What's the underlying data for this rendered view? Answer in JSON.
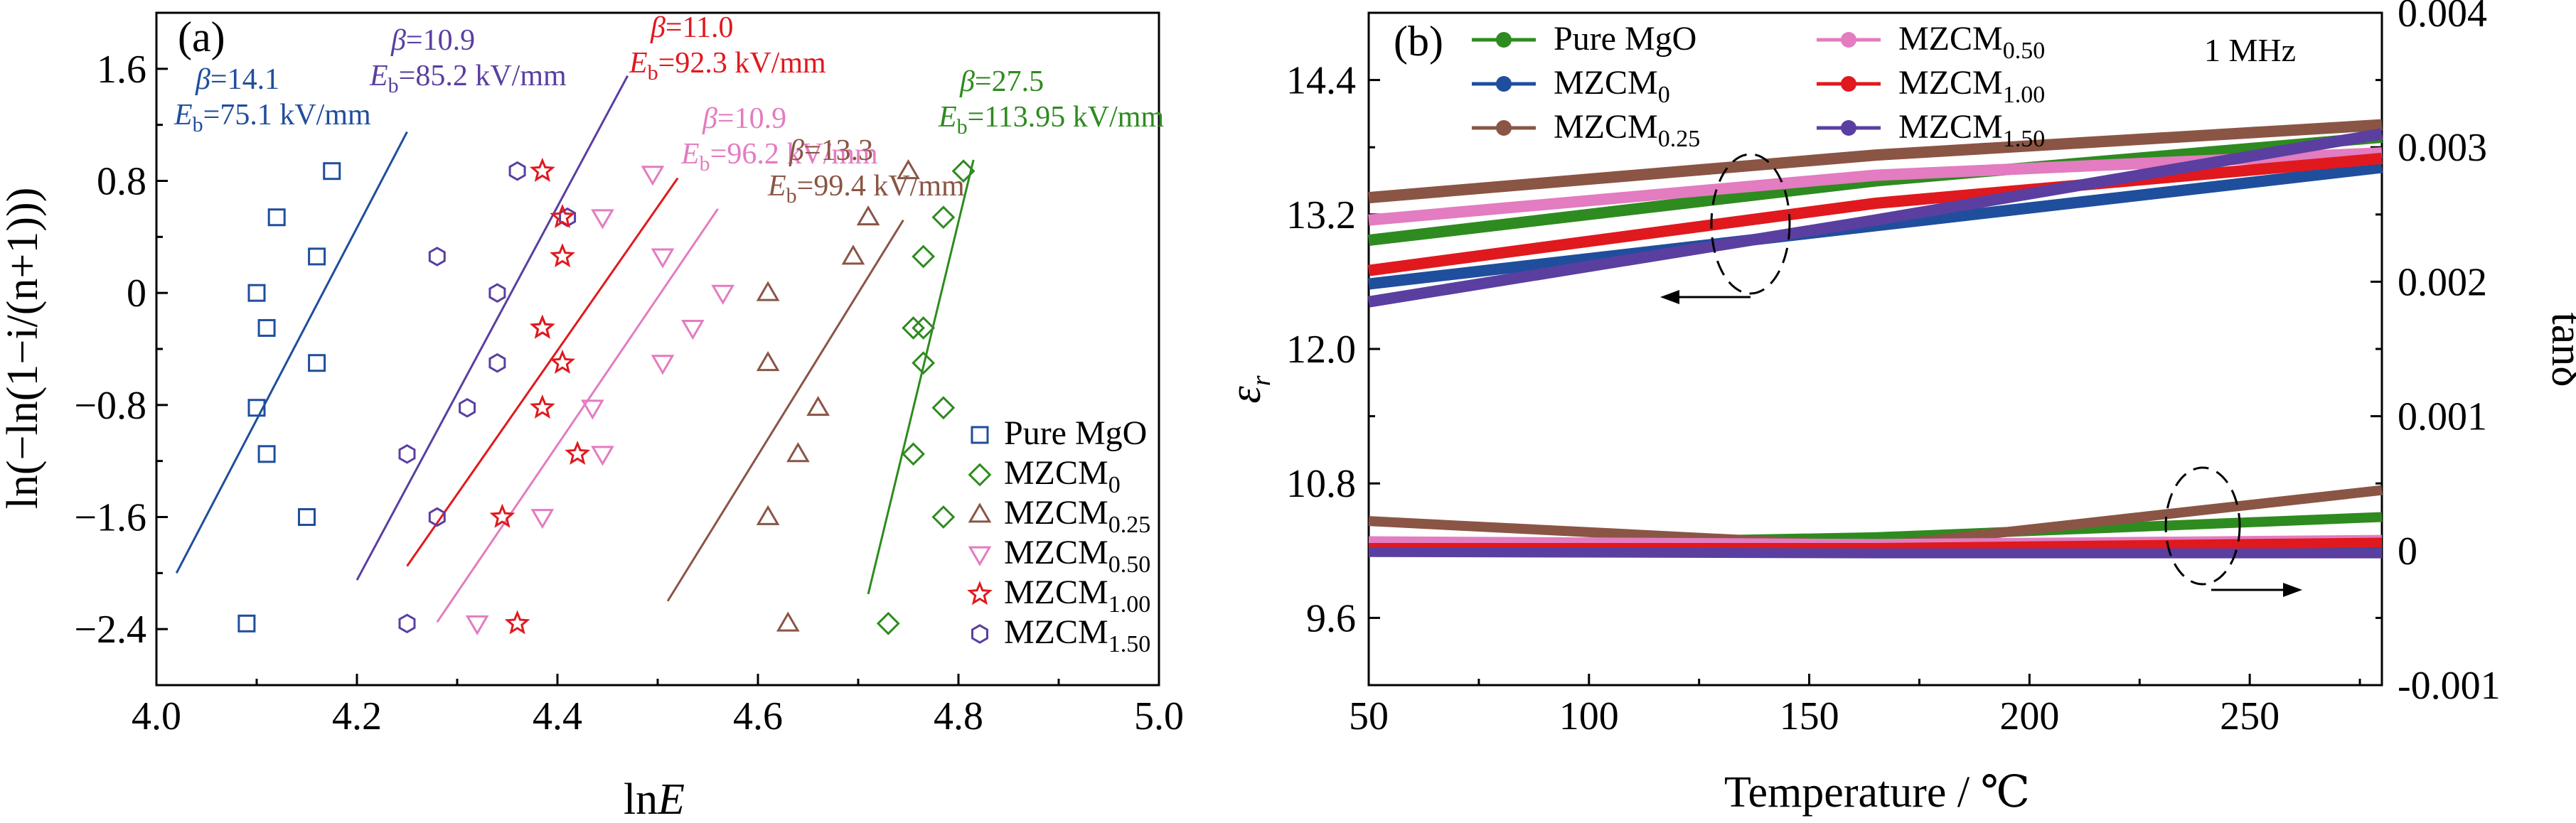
{
  "panels": {
    "a": {
      "label": "(a)",
      "xlabel_prefix": "ln",
      "xlabel_var": "E",
      "ylabel": "ln(−ln(1−i/(n+1)))",
      "x_ticks": [
        "4.0",
        "4.2",
        "4.4",
        "4.6",
        "4.8",
        "5.0"
      ],
      "y_ticks": [
        "1.6",
        "0.8",
        "0",
        "−0.8",
        "−1.6",
        "−2.4"
      ]
    },
    "b": {
      "label": "(b)",
      "xlabel": "Temperature / ℃",
      "ylabel_left": "εr",
      "ylabel_right": "tanδ",
      "frequency_note": "1 MHz",
      "x_ticks": [
        "50",
        "100",
        "150",
        "200",
        "250"
      ],
      "y_ticks_left": [
        "14.4",
        "13.2",
        "12.0",
        "10.8",
        "9.6"
      ],
      "y_ticks_right": [
        "0.004",
        "0.003",
        "0.002",
        "0.001",
        "0",
        "-0.001"
      ]
    }
  },
  "chart_data": [
    {
      "type": "scatter",
      "panel": "a",
      "xlabel": "lnE",
      "ylabel": "ln(−ln(1−i/(n+1)))",
      "xlim": [
        4.0,
        5.0
      ],
      "ylim": [
        -2.8,
        2.0
      ],
      "grid": false,
      "legend_position": "bottom-right",
      "series": [
        {
          "name": "Pure MgO",
          "sub": "",
          "color": "#1f4e9c",
          "marker": "square",
          "beta": "14.1",
          "Eb": "75.1 kV/mm",
          "fit": [
            [
              4.02,
              -2.0
            ],
            [
              4.25,
              1.15
            ]
          ],
          "points": [
            [
              4.09,
              -2.36
            ],
            [
              4.15,
              -1.6
            ],
            [
              4.11,
              -1.15
            ],
            [
              4.1,
              -0.82
            ],
            [
              4.16,
              -0.5
            ],
            [
              4.11,
              -0.25
            ],
            [
              4.1,
              0.0
            ],
            [
              4.16,
              0.26
            ],
            [
              4.12,
              0.54
            ],
            [
              4.175,
              0.87
            ]
          ]
        },
        {
          "name": "MZCM",
          "sub": "1.50",
          "color": "#5a3fa0",
          "marker": "hexagon",
          "beta": "10.9",
          "Eb": "85.2 kV/mm",
          "fit": [
            [
              4.2,
              -2.05
            ],
            [
              4.47,
              1.55
            ]
          ],
          "points": [
            [
              4.25,
              -2.36
            ],
            [
              4.28,
              -1.6
            ],
            [
              4.25,
              -1.15
            ],
            [
              4.31,
              -0.82
            ],
            [
              4.34,
              -0.5
            ],
            [
              4.34,
              0.0
            ],
            [
              4.28,
              0.26
            ],
            [
              4.41,
              0.54
            ],
            [
              4.36,
              0.87
            ]
          ]
        },
        {
          "name": "MZCM",
          "sub": "1.00",
          "color": "#e0191e",
          "marker": "star",
          "beta": "11.0",
          "Eb": "92.3 kV/mm",
          "fit": [
            [
              4.25,
              -1.95
            ],
            [
              4.52,
              0.82
            ]
          ],
          "points": [
            [
              4.36,
              -2.36
            ],
            [
              4.345,
              -1.6
            ],
            [
              4.42,
              -1.15
            ],
            [
              4.385,
              -0.82
            ],
            [
              4.405,
              -0.5
            ],
            [
              4.385,
              -0.25
            ],
            [
              4.385,
              -0.25
            ],
            [
              4.405,
              0.26
            ],
            [
              4.405,
              0.54
            ],
            [
              4.385,
              0.87
            ]
          ]
        },
        {
          "name": "MZCM",
          "sub": "0.50",
          "color": "#e37cc0",
          "marker": "triangle-down",
          "beta": "10.9",
          "Eb": "96.2 kV/mm",
          "fit": [
            [
              4.28,
              -2.35
            ],
            [
              4.56,
              0.6
            ]
          ],
          "points": [
            [
              4.32,
              -2.36
            ],
            [
              4.385,
              -1.6
            ],
            [
              4.445,
              -1.15
            ],
            [
              4.435,
              -0.82
            ],
            [
              4.505,
              -0.5
            ],
            [
              4.535,
              -0.25
            ],
            [
              4.565,
              0.0
            ],
            [
              4.505,
              0.26
            ],
            [
              4.445,
              0.54
            ],
            [
              4.495,
              0.85
            ]
          ]
        },
        {
          "name": "MZCM",
          "sub": "0.25",
          "color": "#8a5545",
          "marker": "triangle-up",
          "beta": "13.3",
          "Eb": "99.4 kV/mm",
          "fit": [
            [
              4.51,
              -2.2
            ],
            [
              4.745,
              0.52
            ]
          ],
          "points": [
            [
              4.63,
              -2.36
            ],
            [
              4.61,
              -1.6
            ],
            [
              4.64,
              -1.15
            ],
            [
              4.66,
              -0.82
            ],
            [
              4.61,
              -0.5
            ],
            [
              4.61,
              0.0
            ],
            [
              4.695,
              0.26
            ],
            [
              4.71,
              0.54
            ],
            [
              4.75,
              0.87
            ]
          ]
        },
        {
          "name": "MZCM",
          "sub": "0",
          "color": "#2e8b1f",
          "marker": "diamond",
          "beta": "27.5",
          "Eb": "113.95 kV/mm",
          "fit": [
            [
              4.71,
              -2.15
            ],
            [
              4.815,
              0.95
            ]
          ],
          "points": [
            [
              4.73,
              -2.36
            ],
            [
              4.785,
              -1.6
            ],
            [
              4.755,
              -1.15
            ],
            [
              4.785,
              -0.82
            ],
            [
              4.765,
              -0.5
            ],
            [
              4.765,
              -0.25
            ],
            [
              4.755,
              -0.25
            ],
            [
              4.765,
              0.26
            ],
            [
              4.785,
              0.54
            ],
            [
              4.805,
              0.87
            ]
          ]
        }
      ]
    },
    {
      "type": "line",
      "panel": "b",
      "xlabel": "Temperature / ℃",
      "ylabel": "εr",
      "ylabel_right": "tanδ",
      "xlim": [
        50,
        280
      ],
      "ylim": [
        9.0,
        15.0
      ],
      "ylim_right": [
        -0.001,
        0.004
      ],
      "grid": false,
      "legend_position": "top-left",
      "series": [
        {
          "name": "Pure MgO",
          "sub": "",
          "color": "#2e8b1f",
          "er": [
            12.97,
            13.5,
            13.89
          ],
          "tand": [
            3e-05,
            0.0001,
            0.00025
          ]
        },
        {
          "name": "MZCM",
          "sub": "0",
          "color": "#1f4e9c",
          "er": [
            12.58,
            13.1,
            13.62
          ],
          "tand": [
            0.0,
            3e-05,
            4e-05
          ]
        },
        {
          "name": "MZCM",
          "sub": "0.25",
          "color": "#8a5545",
          "er": [
            13.35,
            13.73,
            14.0
          ],
          "tand": [
            0.00022,
            3e-05,
            0.00045
          ]
        },
        {
          "name": "MZCM",
          "sub": "0.50",
          "color": "#e37cc0",
          "er": [
            13.15,
            13.55,
            13.75
          ],
          "tand": [
            7e-05,
            5e-05,
            8e-05
          ]
        },
        {
          "name": "MZCM",
          "sub": "1.00",
          "color": "#e0191e",
          "er": [
            12.7,
            13.3,
            13.7
          ],
          "tand": [
            2e-05,
            2e-05,
            6e-05
          ]
        },
        {
          "name": "MZCM",
          "sub": "1.50",
          "color": "#5a3fa0",
          "er": [
            12.42,
            13.15,
            13.92
          ],
          "tand": [
            -1e-05,
            -2e-05,
            -2e-05
          ]
        }
      ]
    }
  ]
}
